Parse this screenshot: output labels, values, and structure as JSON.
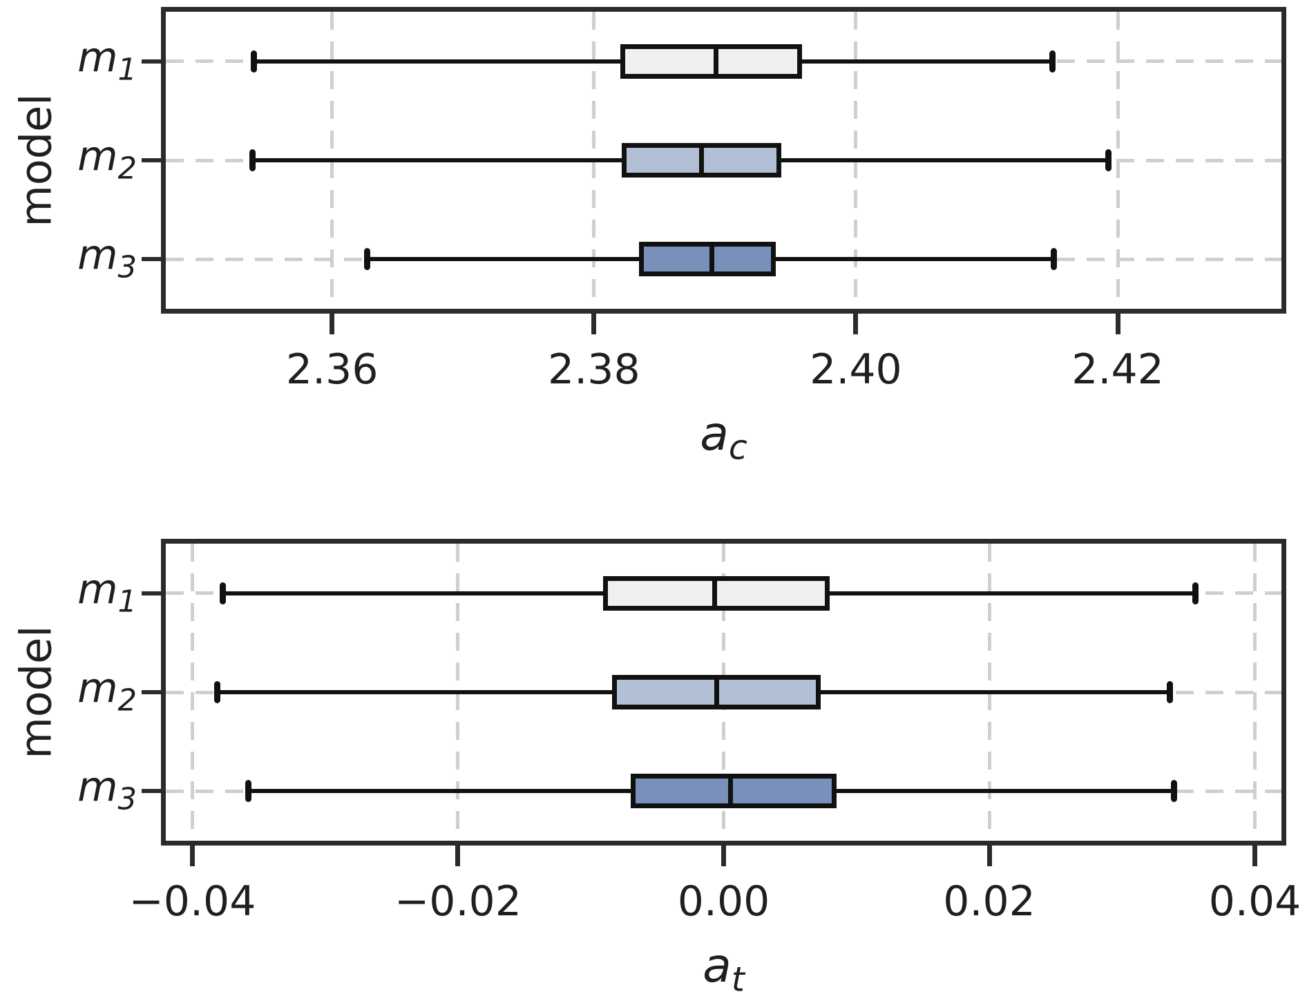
{
  "figure": {
    "background": "#ffffff"
  },
  "style": {
    "box_fill_colors": [
      "#f0f0f2",
      "#b3bfd5",
      "#7890ba"
    ],
    "line_color": "#111111",
    "spine_color": "#2b2b2b",
    "grid_color": "#cfcfcf",
    "text_color": "#1f1f1f"
  },
  "chart_data": [
    {
      "type": "boxplot",
      "orientation": "horizontal",
      "title": "",
      "xlabel": {
        "base": "a",
        "sub": "c"
      },
      "ylabel": "model",
      "categories": [
        {
          "base": "m",
          "sub": "1"
        },
        {
          "base": "m",
          "sub": "2"
        },
        {
          "base": "m",
          "sub": "3"
        }
      ],
      "xlim": [
        2.3473,
        2.4325
      ],
      "xticks": [
        2.36,
        2.38,
        2.4,
        2.42
      ],
      "xtick_labels": [
        "2.36",
        "2.38",
        "2.40",
        "2.42"
      ],
      "grid": true,
      "boxes": [
        {
          "model": "m1",
          "whisker_low": 2.354,
          "q1": 2.3822,
          "median": 2.3893,
          "q3": 2.3957,
          "whisker_high": 2.415
        },
        {
          "model": "m2",
          "whisker_low": 2.3539,
          "q1": 2.3823,
          "median": 2.3882,
          "q3": 2.3941,
          "whisker_high": 2.4193
        },
        {
          "model": "m3",
          "whisker_low": 2.3627,
          "q1": 2.3836,
          "median": 2.389,
          "q3": 2.3937,
          "whisker_high": 2.4151
        }
      ]
    },
    {
      "type": "boxplot",
      "orientation": "horizontal",
      "title": "",
      "xlabel": {
        "base": "a",
        "sub": "t"
      },
      "ylabel": "model",
      "categories": [
        {
          "base": "m",
          "sub": "1"
        },
        {
          "base": "m",
          "sub": "2"
        },
        {
          "base": "m",
          "sub": "3"
        }
      ],
      "xlim": [
        -0.042,
        0.042
      ],
      "xticks": [
        -0.04,
        -0.02,
        0.0,
        0.02,
        0.04
      ],
      "xtick_labels": [
        "−0.04",
        "−0.02",
        "0.00",
        "0.02",
        "0.04"
      ],
      "grid": true,
      "boxes": [
        {
          "model": "m1",
          "whisker_low": -0.0377,
          "q1": -0.0089,
          "median": -0.0007,
          "q3": 0.0078,
          "whisker_high": 0.0355
        },
        {
          "model": "m2",
          "whisker_low": -0.0381,
          "q1": -0.0082,
          "median": -0.0005,
          "q3": 0.0071,
          "whisker_high": 0.0336
        },
        {
          "model": "m3",
          "whisker_low": -0.0358,
          "q1": -0.0068,
          "median": 0.0005,
          "q3": 0.0083,
          "whisker_high": 0.0339
        }
      ]
    }
  ]
}
